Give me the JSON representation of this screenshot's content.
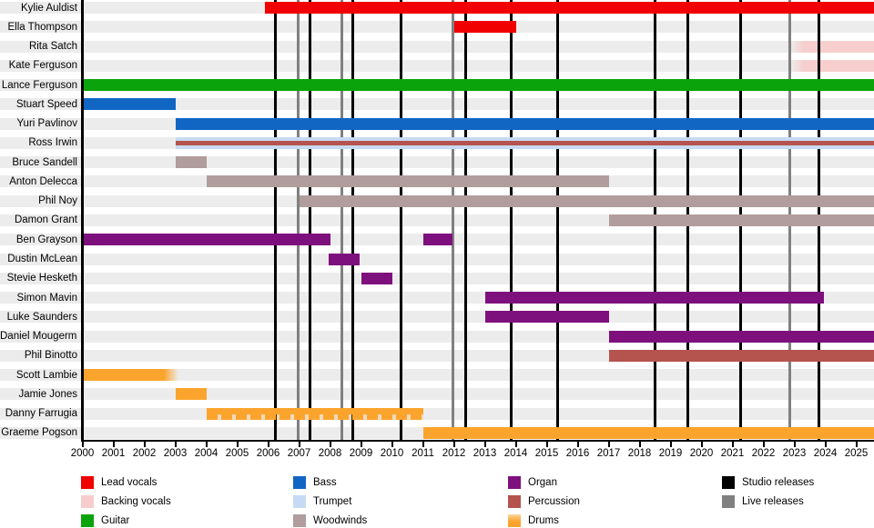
{
  "chart_data": {
    "type": "timeline",
    "x_axis": {
      "start": 2000,
      "end": 2025,
      "tick_step": 1,
      "tick_labels": [
        "2000",
        "2001",
        "2002",
        "2003",
        "2004",
        "2005",
        "2006",
        "2007",
        "2008",
        "2009",
        "2010",
        "2011",
        "2012",
        "2013",
        "2014",
        "2015",
        "2016",
        "2017",
        "2018",
        "2019",
        "2020",
        "2021",
        "2022",
        "2023",
        "2024",
        "2025"
      ]
    },
    "colors": {
      "lead_vocals": "#F00000",
      "backing_vocals": "#F7CCCC",
      "guitar": "#0BA30B",
      "bass": "#1166C4",
      "trumpet": "#C7DAF3",
      "woodwinds": "#B19D9D",
      "organ": "#7E107E",
      "percussion": "#B5534F",
      "drums": "#FBA42D",
      "studio_releases": "#000000",
      "live_releases": "#808080",
      "row_band": "#ECECEC"
    },
    "members": [
      {
        "name": "Kylie Auldist",
        "segments": [
          {
            "role": "lead_vocals",
            "from": 2005.9,
            "to": "end"
          }
        ]
      },
      {
        "name": "Ella Thompson",
        "segments": [
          {
            "role": "lead_vocals",
            "from": 2012.0,
            "to": 2014.0
          }
        ]
      },
      {
        "name": "Rita Satch",
        "segments": [
          {
            "role": "backing_vocals",
            "from": 2022.87,
            "to": "end",
            "style": "fade-left"
          }
        ]
      },
      {
        "name": "Kate Ferguson",
        "segments": [
          {
            "role": "backing_vocals",
            "from": 2022.87,
            "to": "end",
            "style": "fade-left"
          }
        ]
      },
      {
        "name": "Lance Ferguson",
        "segments": [
          {
            "role": "guitar",
            "from": 2000.0,
            "to": "end"
          }
        ]
      },
      {
        "name": "Stuart Speed",
        "segments": [
          {
            "role": "bass",
            "from": 2000.0,
            "to": 2003.0
          }
        ]
      },
      {
        "name": "Yuri Pavlinov",
        "segments": [
          {
            "role": "bass",
            "from": 2003.0,
            "to": "end"
          }
        ]
      },
      {
        "name": "Ross Irwin",
        "segments": [
          {
            "role": "trumpet",
            "from": 2003.0,
            "to": "end",
            "overlay_role": "percussion"
          }
        ]
      },
      {
        "name": "Bruce Sandell",
        "segments": [
          {
            "role": "woodwinds",
            "from": 2003.0,
            "to": 2004.0
          }
        ]
      },
      {
        "name": "Anton Delecca",
        "segments": [
          {
            "role": "woodwinds",
            "from": 2004.0,
            "to": 2017.0
          }
        ]
      },
      {
        "name": "Phil Noy",
        "segments": [
          {
            "role": "woodwinds",
            "from": 2007.0,
            "to": "end"
          }
        ]
      },
      {
        "name": "Damon Grant",
        "segments": [
          {
            "role": "woodwinds",
            "from": 2017.0,
            "to": "end"
          }
        ]
      },
      {
        "name": "Ben Grayson",
        "segments": [
          {
            "role": "organ",
            "from": 2000.0,
            "to": 2008.0
          },
          {
            "role": "organ",
            "from": 2011.0,
            "to": 2011.95
          }
        ]
      },
      {
        "name": "Dustin McLean",
        "segments": [
          {
            "role": "organ",
            "from": 2007.95,
            "to": 2008.95
          }
        ]
      },
      {
        "name": "Stevie Hesketh",
        "segments": [
          {
            "role": "organ",
            "from": 2009.0,
            "to": 2010.0
          }
        ]
      },
      {
        "name": "Simon Mavin",
        "segments": [
          {
            "role": "organ",
            "from": 2013.0,
            "to": 2023.95
          }
        ]
      },
      {
        "name": "Luke Saunders",
        "segments": [
          {
            "role": "organ",
            "from": 2013.0,
            "to": 2017.0
          }
        ]
      },
      {
        "name": "Daniel Mougerman",
        "segments": [
          {
            "role": "organ",
            "from": 2017.0,
            "to": "end"
          }
        ]
      },
      {
        "name": "Phil Binotto",
        "segments": [
          {
            "role": "percussion",
            "from": 2017.0,
            "to": "end"
          }
        ]
      },
      {
        "name": "Scott Lambie",
        "segments": [
          {
            "role": "drums",
            "from": 2000.0,
            "to": 2003.1,
            "style": "fade-right"
          }
        ]
      },
      {
        "name": "Jamie Jones",
        "segments": [
          {
            "role": "drums",
            "from": 2003.0,
            "to": 2004.0
          }
        ]
      },
      {
        "name": "Danny Farrugia",
        "segments": [
          {
            "role": "drums",
            "from": 2004.0,
            "to": 2011.0,
            "style": "dashed"
          }
        ]
      },
      {
        "name": "Graeme Pogson",
        "segments": [
          {
            "role": "drums",
            "from": 2011.0,
            "to": "end"
          }
        ]
      }
    ],
    "releases": {
      "studio": [
        2006.24,
        2007.34,
        2008.73,
        2010.28,
        2012.39,
        2013.84,
        2015.35,
        2018.49,
        2019.56,
        2021.26,
        2023.78
      ],
      "live": [
        2006.98,
        2008.39,
        2011.98,
        2022.86
      ]
    },
    "legend": {
      "columns": [
        [
          {
            "label": "Lead vocals",
            "role": "lead_vocals"
          },
          {
            "label": "Backing vocals",
            "role": "backing_vocals"
          },
          {
            "label": "Guitar",
            "role": "guitar"
          }
        ],
        [
          {
            "label": "Bass",
            "role": "bass"
          },
          {
            "label": "Trumpet",
            "role": "trumpet"
          },
          {
            "label": "Woodwinds",
            "role": "woodwinds"
          }
        ],
        [
          {
            "label": "Organ",
            "role": "organ"
          },
          {
            "label": "Percussion",
            "role": "percussion"
          },
          {
            "label": "Drums",
            "role": "drums"
          }
        ],
        [
          {
            "label": "Studio releases",
            "role": "studio_releases"
          },
          {
            "label": "Live releases",
            "role": "live_releases"
          }
        ]
      ]
    }
  }
}
